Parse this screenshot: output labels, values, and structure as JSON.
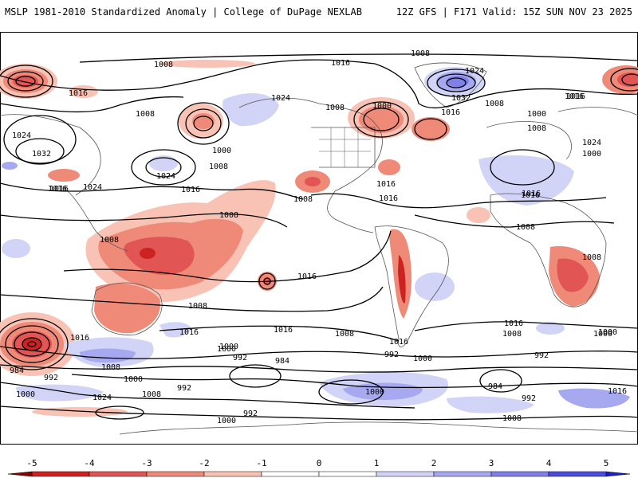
{
  "header": {
    "title_left": "MSLP 1981-2010 Standardized Anomaly | College of DuPage NEXLAB",
    "title_right": "12Z GFS | F171 Valid: 15Z SUN NOV 23 2025"
  },
  "colors": {
    "neg5": "#8b0000",
    "neg4": "#cc2222",
    "neg3": "#e15555",
    "neg2": "#f08a78",
    "neg1": "#f8c2b4",
    "pos1": "#d2d4f7",
    "pos2": "#a6a9ef",
    "pos3": "#7f80e8",
    "pos4": "#4d4ddb",
    "pos5": "#2020c8",
    "contour": "#000000",
    "land_outline": "#555555"
  },
  "colorbar": {
    "min": -5,
    "max": 5,
    "ticks": [
      "-5",
      "-4",
      "-3",
      "-2",
      "-1",
      "0",
      "1",
      "2",
      "3",
      "4",
      "5"
    ]
  },
  "contour_labels": [
    {
      "text": "1008"
    },
    {
      "text": "1016"
    },
    {
      "text": "1008"
    },
    {
      "text": "1016"
    },
    {
      "text": "1024"
    },
    {
      "text": "1024"
    },
    {
      "text": "1032"
    },
    {
      "text": "1008"
    },
    {
      "text": "1000"
    },
    {
      "text": "1016"
    },
    {
      "text": "1024"
    },
    {
      "text": "1016"
    },
    {
      "text": "1000"
    },
    {
      "text": "1008"
    },
    {
      "text": "1024"
    },
    {
      "text": "1016"
    },
    {
      "text": "1016"
    },
    {
      "text": "1008"
    },
    {
      "text": "1016"
    },
    {
      "text": "1008"
    },
    {
      "text": "1016"
    },
    {
      "text": "1008"
    },
    {
      "text": "1016"
    },
    {
      "text": "1000"
    },
    {
      "text": "1008"
    },
    {
      "text": "1024"
    },
    {
      "text": "1032"
    },
    {
      "text": "1016"
    },
    {
      "text": "1008"
    },
    {
      "text": "1000"
    },
    {
      "text": "1016"
    },
    {
      "text": "1008"
    },
    {
      "text": "1024"
    },
    {
      "text": "1016"
    },
    {
      "text": "1008"
    },
    {
      "text": "1008"
    },
    {
      "text": "1016"
    },
    {
      "text": "1000"
    },
    {
      "text": "1008"
    },
    {
      "text": "984"
    },
    {
      "text": "992"
    },
    {
      "text": "1000"
    },
    {
      "text": "1008"
    },
    {
      "text": "1016"
    },
    {
      "text": "1024"
    },
    {
      "text": "1008"
    },
    {
      "text": "992"
    },
    {
      "text": "1000"
    },
    {
      "text": "992"
    },
    {
      "text": "1000"
    },
    {
      "text": "984"
    },
    {
      "text": "1016"
    },
    {
      "text": "1016"
    },
    {
      "text": "1008"
    },
    {
      "text": "992"
    },
    {
      "text": "1000"
    },
    {
      "text": "1016"
    },
    {
      "text": "1000"
    },
    {
      "text": "992"
    },
    {
      "text": "1000"
    },
    {
      "text": "1008"
    },
    {
      "text": "984"
    },
    {
      "text": "1016"
    },
    {
      "text": "992"
    },
    {
      "text": "1000"
    },
    {
      "text": "992"
    },
    {
      "text": "1000"
    },
    {
      "text": "1008"
    },
    {
      "text": "1016"
    }
  ]
}
